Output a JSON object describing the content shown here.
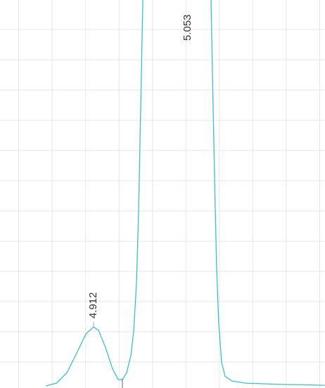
{
  "chart_data": {
    "type": "line",
    "x": [
      4.8407,
      4.8564,
      4.8722,
      4.8879,
      4.9005,
      4.912,
      4.9194,
      4.9299,
      4.9404,
      4.9488,
      4.9551,
      4.9614,
      4.9678,
      4.972,
      4.9762,
      4.9793,
      4.9814,
      4.9835,
      4.9856,
      5.053,
      5.0875,
      5.0896,
      5.0928,
      5.0959,
      5.0991,
      5.1033,
      5.1085,
      5.119,
      5.14,
      5.1925,
      5.2577
    ],
    "series": [
      {
        "color": "#3dbfc9",
        "values": [
          2.1,
          3.0,
          6.5,
          13.5,
          19.3,
          21.6,
          20.5,
          14.7,
          7.7,
          4.2,
          4.2,
          6.5,
          12.3,
          20.5,
          36.7,
          60.0,
          83.3,
          106.5,
          129.8,
          null,
          129.8,
          106.5,
          71.6,
          41.4,
          22.8,
          10.0,
          5.3,
          3.7,
          3.0,
          2.6,
          2.3
        ]
      }
    ],
    "peaks": [
      4.912,
      5.053
    ],
    "peak_heights": [
      21.6,
      129.8
    ],
    "valley_marks": [
      4.955
    ],
    "xlim": [
      4.772,
      5.258
    ],
    "ylim": [
      1.4,
      129.8
    ],
    "xticks": [
      4.8,
      4.85,
      4.9,
      4.95,
      5.0,
      5.05,
      5.1,
      5.15,
      5.2,
      5.25
    ],
    "yticks": [
      10,
      20,
      30,
      40,
      50,
      60,
      70,
      80,
      90,
      100,
      110,
      120
    ],
    "grid": true,
    "grid_color": "#e6e6e6"
  }
}
